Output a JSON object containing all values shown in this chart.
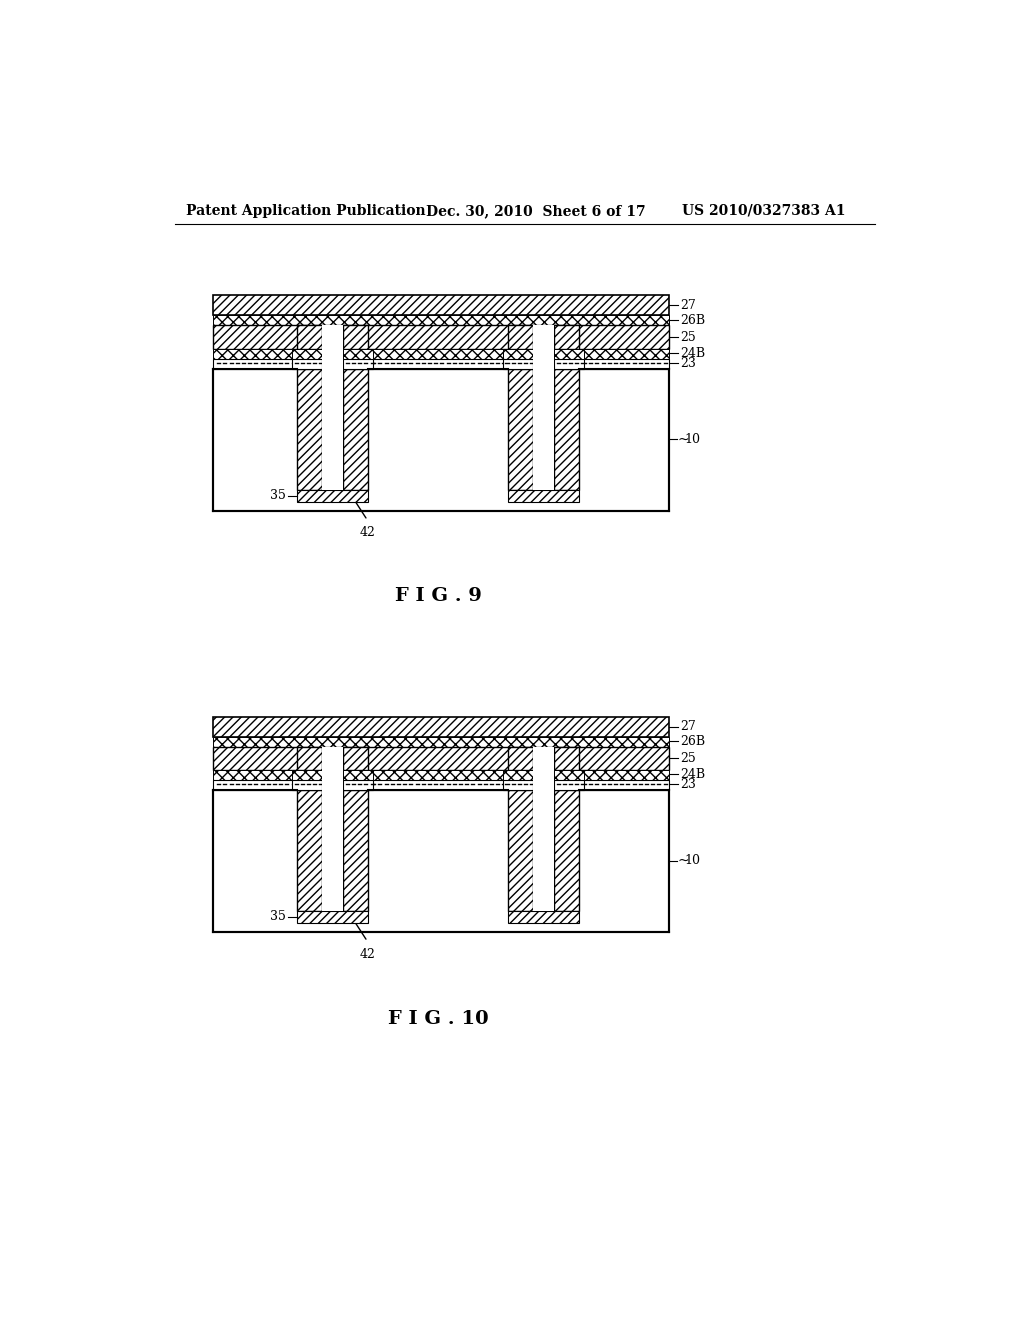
{
  "bg_color": "#ffffff",
  "header_left": "Patent Application Publication",
  "header_mid": "Dec. 30, 2010  Sheet 6 of 17",
  "header_right": "US 2010/0327383 A1",
  "fig9_title": "F I G . 9",
  "fig10_title": "F I G . 10",
  "label_27": "27",
  "label_26B": "26B",
  "label_25": "25",
  "label_24B": "24B",
  "label_23": "23",
  "label_10": "10",
  "label_35": "35",
  "label_42": "42"
}
